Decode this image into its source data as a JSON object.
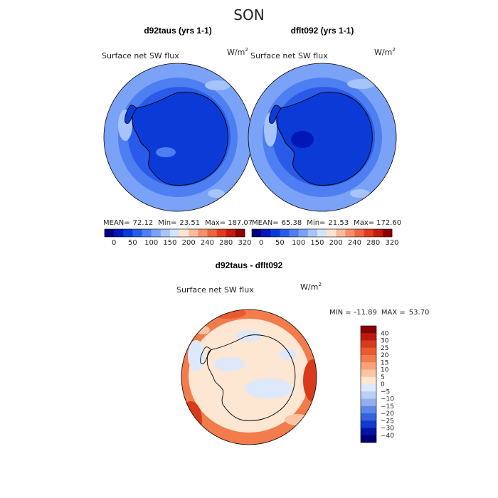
{
  "figure": {
    "season": "SON"
  },
  "chart_data": [
    {
      "type": "heatmap",
      "projection": "south-polar-stereographic",
      "title": "d92taus (yrs 1-1)",
      "field": "Surface net SW flux",
      "units": "W/m",
      "units_sup": "2",
      "stats": {
        "mean_label": "MEAN=",
        "mean": "72.12",
        "min_label": "Min=",
        "min": "23.51",
        "max_label": "Max=",
        "max": "187.07"
      },
      "colorbar": {
        "orientation": "horizontal",
        "ticks": [
          "0",
          "50",
          "100",
          "150",
          "200",
          "240",
          "280",
          "320"
        ],
        "colors": [
          "#00007e",
          "#0018b8",
          "#0b3ad6",
          "#2a5be8",
          "#4d7ef2",
          "#7aa3f7",
          "#a6c4fa",
          "#d2e3fb",
          "#fde4cf",
          "#f9bd9c",
          "#f4916b",
          "#ec6644",
          "#e03b22",
          "#c41a10",
          "#8f0000"
        ]
      },
      "levels": {
        "ocean": "#7aa3f7",
        "inner": "#4d7ef2",
        "ice": "#2a5be8",
        "land": "#0b3ad6"
      }
    },
    {
      "type": "heatmap",
      "projection": "south-polar-stereographic",
      "title": "dflt092 (yrs 1-1)",
      "field": "Surface net SW flux",
      "units": "W/m",
      "units_sup": "2",
      "stats": {
        "mean_label": "MEAN=",
        "mean": "65.38",
        "min_label": "Min=",
        "min": "21.53",
        "max_label": "Max=",
        "max": "172.60"
      },
      "colorbar": {
        "orientation": "horizontal",
        "ticks": [
          "0",
          "50",
          "100",
          "150",
          "200",
          "240",
          "280",
          "320"
        ],
        "colors": [
          "#00007e",
          "#0018b8",
          "#0b3ad6",
          "#2a5be8",
          "#4d7ef2",
          "#7aa3f7",
          "#a6c4fa",
          "#d2e3fb",
          "#fde4cf",
          "#f9bd9c",
          "#f4916b",
          "#ec6644",
          "#e03b22",
          "#c41a10",
          "#8f0000"
        ]
      },
      "levels": {
        "ocean": "#7aa3f7",
        "inner": "#4d7ef2",
        "ice": "#2a5be8",
        "land": "#0b3ad6"
      }
    },
    {
      "type": "heatmap",
      "projection": "south-polar-stereographic",
      "title": "d92taus - dflt092",
      "field": "Surface net SW flux",
      "units": "W/m",
      "units_sup": "2",
      "stats": {
        "min_label": "MIN =",
        "min": "-11.89",
        "max_label": "MAX =",
        "max": "53.70"
      },
      "colorbar": {
        "orientation": "vertical",
        "ticks": [
          "40",
          "30",
          "25",
          "20",
          "15",
          "10",
          "5",
          "0",
          "-5",
          "-10",
          "-15",
          "-20",
          "-25",
          "-30",
          "-40"
        ],
        "colors": [
          "#8a0000",
          "#b81d0c",
          "#d83a1c",
          "#ea5a2e",
          "#f27c4c",
          "#f7a27a",
          "#fbc4a3",
          "#fde6d2",
          "#dde9fa",
          "#b9d0f6",
          "#90b1ef",
          "#5f88e6",
          "#3562de",
          "#1439cd",
          "#0015a5",
          "#000070"
        ]
      },
      "levels": {
        "ocean": "#fde6d2",
        "inner": "#fde6d2",
        "ice": "#dde9fa",
        "land": "#fde6d2",
        "rim": "#f27c4c",
        "rimStrong": "#d83a1c"
      }
    }
  ]
}
